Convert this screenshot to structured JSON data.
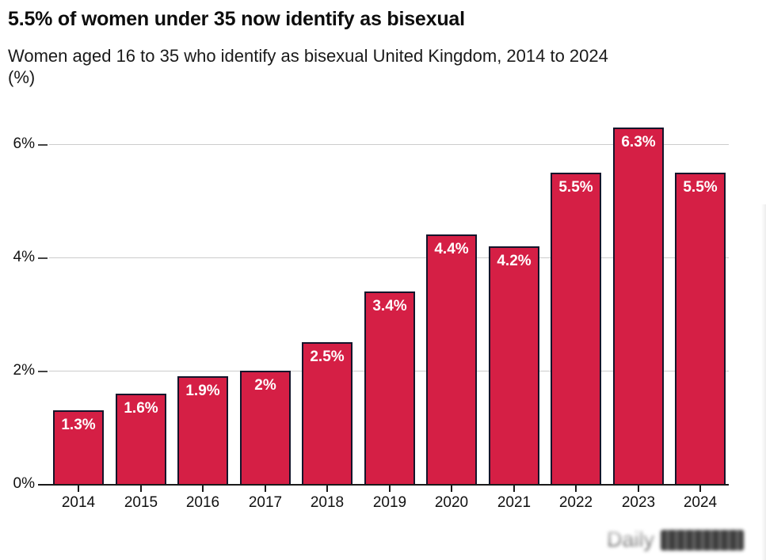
{
  "header": {
    "title": "5.5% of women under 35 now identify as bisexual",
    "subtitle_lines": [
      "Women aged 16 to 35 who identify as bisexual United Kingdom, 2014 to 2024",
      "(%)"
    ]
  },
  "chart_data": {
    "type": "bar",
    "title": "5.5% of women under 35 now identify as bisexual",
    "subtitle": "Women aged 16 to 35 who identify as bisexual United Kingdom, 2014 to 2024 (%)",
    "categories": [
      "2014",
      "2015",
      "2016",
      "2017",
      "2018",
      "2019",
      "2020",
      "2021",
      "2022",
      "2023",
      "2024"
    ],
    "values": [
      1.3,
      1.6,
      1.9,
      2,
      2.5,
      3.4,
      4.4,
      4.2,
      5.5,
      6.3,
      5.5
    ],
    "bar_labels": [
      "1.3%",
      "1.6%",
      "1.9%",
      "2%",
      "2.5%",
      "3.4%",
      "4.4%",
      "4.2%",
      "5.5%",
      "6.3%",
      "5.5%"
    ],
    "xlabel": "",
    "ylabel": "",
    "ylim": [
      0,
      6.6
    ],
    "yticks": [
      0,
      2,
      4,
      6
    ],
    "ytick_labels": [
      "0%",
      "2%",
      "4%",
      "6%"
    ],
    "grid": true,
    "legend": "none",
    "colors": {
      "bar_fill": "#d51f45",
      "bar_border": "#14152b",
      "bar_label_text": "#ffffff",
      "gridline": "#cccccc",
      "axis": "#1a1a1a",
      "text": "#111111"
    }
  },
  "watermark": {
    "text": "Daily",
    "note": "blurred-illegible-logo-block"
  }
}
